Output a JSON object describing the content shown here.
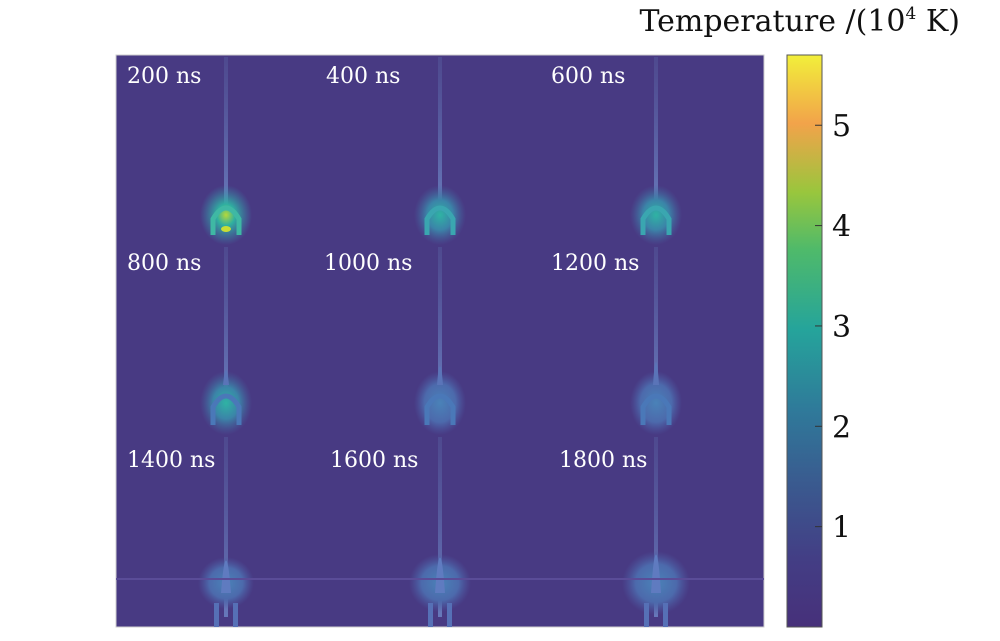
{
  "chart_data": {
    "type": "heatmap",
    "title": "",
    "colorbar": {
      "label": "Temperature /(10",
      "label_sup": "4",
      "label_tail": " K)",
      "ticks": [
        1,
        2,
        3,
        4,
        5
      ],
      "range": [
        0,
        5.7
      ],
      "colormap": [
        "#472d7b",
        "#3b528b",
        "#2c728e",
        "#21918c",
        "#28ae80",
        "#5ec962",
        "#addc30",
        "#f5a042",
        "#e0e23a",
        "#fde725"
      ]
    },
    "panels": [
      {
        "label": "200 ns",
        "time_ns": 200,
        "peak_temperature": 4.5
      },
      {
        "label": "400 ns",
        "time_ns": 400,
        "peak_temperature": 3.0
      },
      {
        "label": "600 ns",
        "time_ns": 600,
        "peak_temperature": 2.2
      },
      {
        "label": "800 ns",
        "time_ns": 800,
        "peak_temperature": 1.8
      },
      {
        "label": "1000 ns",
        "time_ns": 1000,
        "peak_temperature": 1.6
      },
      {
        "label": "1200 ns",
        "time_ns": 1200,
        "peak_temperature": 1.4
      },
      {
        "label": "1400 ns",
        "time_ns": 1400,
        "peak_temperature": 1.2
      },
      {
        "label": "1600 ns",
        "time_ns": 1600,
        "peak_temperature": 1.2
      },
      {
        "label": "1800 ns",
        "time_ns": 1800,
        "peak_temperature": 1.2
      }
    ],
    "background_color": "#483a83"
  }
}
